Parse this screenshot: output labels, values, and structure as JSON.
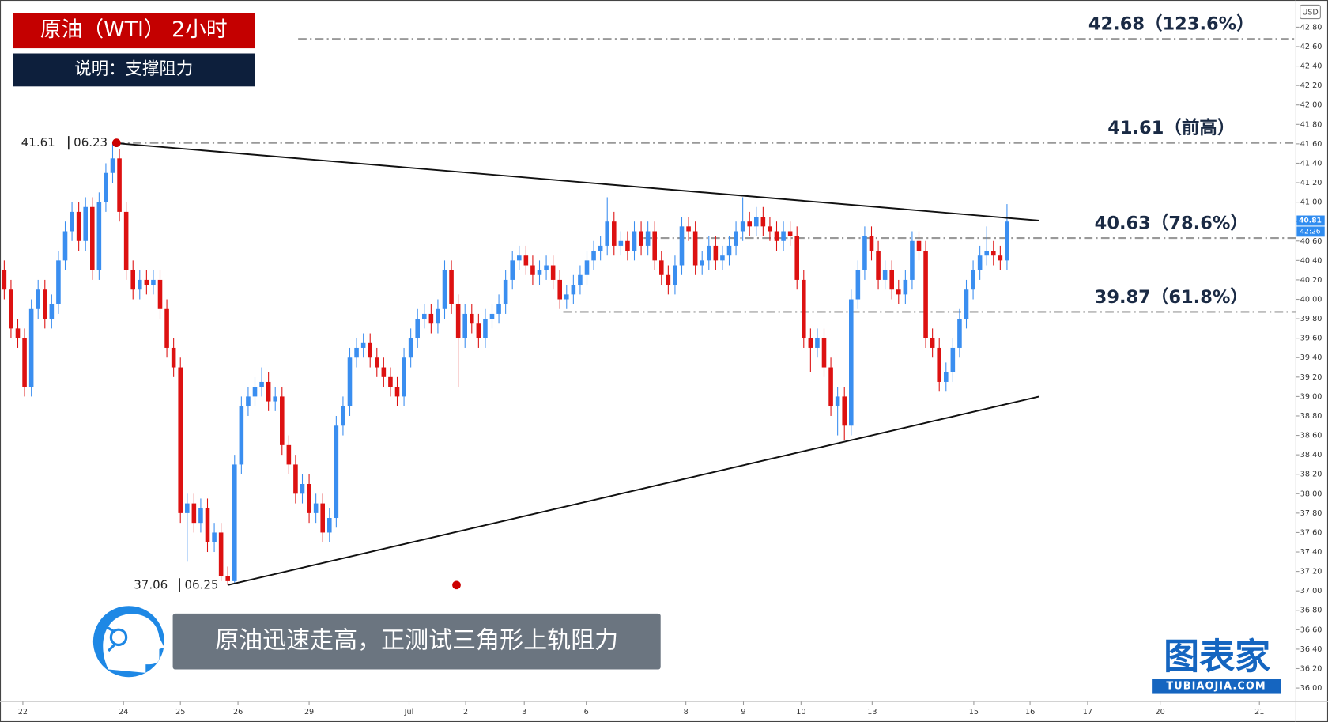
{
  "chart_data": {
    "type": "candlestick",
    "title": "原油（WTI） 2小时",
    "subtitle": "说明：支撑阻力",
    "caption": "原油迅速走高，正测试三角形上轨阻力",
    "logo": "图表家",
    "logo_url": "TUBIAOJIA.COM",
    "currency": "USD",
    "last_price": 40.81,
    "countdown": "42:26",
    "up_color": "#3a8ef0",
    "down_color": "#dd1111",
    "open": [
      40.3,
      40.1,
      39.7,
      39.6,
      39.1,
      39.9,
      40.1,
      39.8,
      39.95,
      40.4,
      40.7,
      40.9,
      40.6,
      40.95,
      40.3,
      41.0,
      41.3,
      41.45,
      40.9,
      40.3,
      40.1,
      40.2,
      40.15,
      40.2,
      39.9,
      39.5,
      39.3,
      37.8,
      37.9,
      37.7,
      37.85,
      37.5,
      37.6,
      37.15,
      37.1,
      38.3,
      38.9,
      39.0,
      39.1,
      39.15,
      38.95,
      39.0,
      38.5,
      38.3,
      38.0,
      38.1,
      37.8,
      37.9,
      37.6,
      37.75,
      38.7,
      38.9,
      39.4,
      39.5,
      39.55,
      39.4,
      39.3,
      39.2,
      39.1,
      39.0,
      39.4,
      39.6,
      39.8,
      39.85,
      39.75,
      39.9,
      40.3,
      39.95,
      39.6,
      39.85,
      39.75,
      39.6,
      39.8,
      39.85,
      39.95,
      40.2,
      40.4,
      40.45,
      40.35,
      40.25,
      40.3,
      40.35,
      40.2,
      40.0,
      40.05,
      40.15,
      40.25,
      40.4,
      40.5,
      40.55,
      40.8,
      40.55,
      40.6,
      40.5,
      40.7,
      40.55,
      40.7,
      40.4,
      40.25,
      40.15,
      40.35,
      40.75,
      40.7,
      40.35,
      40.4,
      40.55,
      40.4,
      40.45,
      40.55,
      40.7,
      40.8,
      40.75,
      40.85,
      40.75,
      40.7,
      40.6,
      40.7,
      40.65,
      40.2,
      39.6,
      39.5,
      39.6,
      39.3,
      38.9,
      39.0,
      38.7,
      40.0,
      40.3,
      40.65,
      40.5,
      40.2,
      40.3,
      40.1,
      40.05,
      40.2,
      40.6,
      40.5,
      39.6,
      39.5,
      39.15,
      39.25,
      39.5,
      39.8,
      40.1,
      40.3,
      40.45,
      40.5,
      40.45,
      40.4
    ],
    "high": [
      40.4,
      40.2,
      39.8,
      39.7,
      40.0,
      40.2,
      40.2,
      40.05,
      40.5,
      40.8,
      41.0,
      41.0,
      41.05,
      41.05,
      41.1,
      41.4,
      41.61,
      41.55,
      41.0,
      40.4,
      40.3,
      40.3,
      40.3,
      40.3,
      40.0,
      39.6,
      39.4,
      38.0,
      38.0,
      37.95,
      37.95,
      37.7,
      37.7,
      37.25,
      38.4,
      39.0,
      39.1,
      39.2,
      39.3,
      39.25,
      39.1,
      39.1,
      38.6,
      38.4,
      38.2,
      38.2,
      38.0,
      38.0,
      37.85,
      38.8,
      39.0,
      39.5,
      39.6,
      39.65,
      39.65,
      39.5,
      39.4,
      39.3,
      39.2,
      39.5,
      39.7,
      39.9,
      39.95,
      39.95,
      40.0,
      40.4,
      40.4,
      40.05,
      39.95,
      39.95,
      39.85,
      39.9,
      39.95,
      40.05,
      40.3,
      40.5,
      40.55,
      40.55,
      40.45,
      40.4,
      40.45,
      40.45,
      40.3,
      40.15,
      40.25,
      40.35,
      40.5,
      40.6,
      40.65,
      41.05,
      40.9,
      40.7,
      40.7,
      40.8,
      40.8,
      40.8,
      40.8,
      40.5,
      40.35,
      40.45,
      40.85,
      40.85,
      40.8,
      40.5,
      40.65,
      40.65,
      40.55,
      40.65,
      40.8,
      41.05,
      40.9,
      40.95,
      40.95,
      40.85,
      40.8,
      40.8,
      40.8,
      40.75,
      40.3,
      39.7,
      39.7,
      39.7,
      39.4,
      39.1,
      39.1,
      40.1,
      40.4,
      40.75,
      40.75,
      40.6,
      40.4,
      40.4,
      40.2,
      40.3,
      40.7,
      40.7,
      40.6,
      39.7,
      39.6,
      39.35,
      39.6,
      39.9,
      40.2,
      40.4,
      40.55,
      40.75,
      40.6,
      40.55,
      40.98
    ],
    "low": [
      40.0,
      39.6,
      39.5,
      39.0,
      39.0,
      39.8,
      39.7,
      39.7,
      39.85,
      40.3,
      40.6,
      40.5,
      40.5,
      40.2,
      40.2,
      40.9,
      41.2,
      40.8,
      40.2,
      40.0,
      40.0,
      40.05,
      40.05,
      39.8,
      39.4,
      39.2,
      37.7,
      37.3,
      37.6,
      37.6,
      37.4,
      37.4,
      37.1,
      37.06,
      37.08,
      38.2,
      38.8,
      38.9,
      39.0,
      38.85,
      38.85,
      38.4,
      38.2,
      37.9,
      37.9,
      37.7,
      37.7,
      37.5,
      37.5,
      37.65,
      38.6,
      38.8,
      39.3,
      39.4,
      39.3,
      39.2,
      39.1,
      39.0,
      38.9,
      38.9,
      39.3,
      39.5,
      39.7,
      39.65,
      39.65,
      39.8,
      39.85,
      39.1,
      39.5,
      39.65,
      39.5,
      39.5,
      39.7,
      39.75,
      39.85,
      40.1,
      40.3,
      40.25,
      40.15,
      40.15,
      40.2,
      40.1,
      39.9,
      39.9,
      39.95,
      40.05,
      40.15,
      40.3,
      40.4,
      40.45,
      40.45,
      40.45,
      40.4,
      40.4,
      40.45,
      40.45,
      40.3,
      40.15,
      40.05,
      40.05,
      40.25,
      40.6,
      40.25,
      40.25,
      40.3,
      40.3,
      40.3,
      40.35,
      40.45,
      40.6,
      40.65,
      40.65,
      40.65,
      40.6,
      40.5,
      40.5,
      40.55,
      40.1,
      39.5,
      39.25,
      39.4,
      39.2,
      38.8,
      38.6,
      38.55,
      38.6,
      39.9,
      40.2,
      40.4,
      40.1,
      40.1,
      40.0,
      39.95,
      39.95,
      40.1,
      40.4,
      39.5,
      39.4,
      39.05,
      39.05,
      39.15,
      39.4,
      39.7,
      40.0,
      40.2,
      40.35,
      40.35,
      40.3,
      40.3
    ],
    "close": [
      40.1,
      39.7,
      39.6,
      39.1,
      39.9,
      40.1,
      39.8,
      39.95,
      40.4,
      40.7,
      40.9,
      40.6,
      40.95,
      40.3,
      41.0,
      41.3,
      41.45,
      40.9,
      40.3,
      40.1,
      40.2,
      40.15,
      40.2,
      39.9,
      39.5,
      39.3,
      37.8,
      37.9,
      37.7,
      37.85,
      37.5,
      37.6,
      37.15,
      37.1,
      38.3,
      38.9,
      39.0,
      39.1,
      39.15,
      38.95,
      39.0,
      38.5,
      38.3,
      38.0,
      38.1,
      37.8,
      37.9,
      37.6,
      37.75,
      38.7,
      38.9,
      39.4,
      39.5,
      39.55,
      39.4,
      39.3,
      39.2,
      39.1,
      39.0,
      39.4,
      39.6,
      39.8,
      39.85,
      39.75,
      39.9,
      40.3,
      39.95,
      39.6,
      39.85,
      39.75,
      39.6,
      39.8,
      39.85,
      39.95,
      40.2,
      40.4,
      40.45,
      40.35,
      40.25,
      40.3,
      40.35,
      40.2,
      40.0,
      40.05,
      40.15,
      40.25,
      40.4,
      40.5,
      40.55,
      40.8,
      40.55,
      40.6,
      40.5,
      40.7,
      40.55,
      40.7,
      40.4,
      40.25,
      40.15,
      40.35,
      40.75,
      40.7,
      40.35,
      40.4,
      40.55,
      40.4,
      40.45,
      40.55,
      40.7,
      40.8,
      40.75,
      40.85,
      40.75,
      40.7,
      40.6,
      40.7,
      40.65,
      40.2,
      39.6,
      39.5,
      39.6,
      39.3,
      38.9,
      39.0,
      38.7,
      40.0,
      40.3,
      40.65,
      40.5,
      40.2,
      40.3,
      40.1,
      40.05,
      40.2,
      40.6,
      40.5,
      39.6,
      39.5,
      39.15,
      39.25,
      39.5,
      39.8,
      40.1,
      40.3,
      40.45,
      40.5,
      40.45,
      40.4,
      40.8
    ],
    "xlim": [
      -0.625,
      190.625
    ],
    "ylim": [
      35.86,
      43.08
    ],
    "xticks": [
      {
        "value": 2.75,
        "label": "22"
      },
      {
        "value": 17.6,
        "label": "24"
      },
      {
        "value": 26,
        "label": "25"
      },
      {
        "value": 34.5,
        "label": "26"
      },
      {
        "value": 45,
        "label": "29"
      },
      {
        "value": 59.75,
        "label": "Jul"
      },
      {
        "value": 68.1,
        "label": "2"
      },
      {
        "value": 76.75,
        "label": "3"
      },
      {
        "value": 85.9,
        "label": "6"
      },
      {
        "value": 100.6,
        "label": "8"
      },
      {
        "value": 109.1,
        "label": "9"
      },
      {
        "value": 117.6,
        "label": "10"
      },
      {
        "value": 128.1,
        "label": "13"
      },
      {
        "value": 143.1,
        "label": "15"
      },
      {
        "value": 151.4,
        "label": "16"
      },
      {
        "value": 159.9,
        "label": "17"
      },
      {
        "value": 170.6,
        "label": "20"
      },
      {
        "value": 185.25,
        "label": "21"
      }
    ],
    "yticks": [
      {
        "value": 36,
        "label": "36.00"
      },
      {
        "value": 36.2,
        "label": "36.20"
      },
      {
        "value": 36.4,
        "label": "36.40"
      },
      {
        "value": 36.6,
        "label": "36.60"
      },
      {
        "value": 36.8,
        "label": "36.80"
      },
      {
        "value": 37,
        "label": "37.00"
      },
      {
        "value": 37.2,
        "label": "37.20"
      },
      {
        "value": 37.4,
        "label": "37.40"
      },
      {
        "value": 37.6,
        "label": "37.60"
      },
      {
        "value": 37.8,
        "label": "37.80"
      },
      {
        "value": 38,
        "label": "38.00"
      },
      {
        "value": 38.2,
        "label": "38.20"
      },
      {
        "value": 38.4,
        "label": "38.40"
      },
      {
        "value": 38.6,
        "label": "38.60"
      },
      {
        "value": 38.8,
        "label": "38.80"
      },
      {
        "value": 39,
        "label": "39.00"
      },
      {
        "value": 39.2,
        "label": "39.20"
      },
      {
        "value": 39.4,
        "label": "39.40"
      },
      {
        "value": 39.6,
        "label": "39.60"
      },
      {
        "value": 39.8,
        "label": "39.80"
      },
      {
        "value": 40,
        "label": "40.00"
      },
      {
        "value": 40.2,
        "label": "40.20"
      },
      {
        "value": 40.4,
        "label": "40.40"
      },
      {
        "value": 40.6,
        "label": "40.60"
      },
      {
        "value": 40.8,
        "label": "40.80"
      },
      {
        "value": 41,
        "label": "41.00"
      },
      {
        "value": 41.2,
        "label": "41.20"
      },
      {
        "value": 41.4,
        "label": "41.40"
      },
      {
        "value": 41.6,
        "label": "41.60"
      },
      {
        "value": 41.8,
        "label": "41.80"
      },
      {
        "value": 42,
        "label": "42.00"
      },
      {
        "value": 42.2,
        "label": "42.20"
      },
      {
        "value": 42.4,
        "label": "42.40"
      },
      {
        "value": 42.6,
        "label": "42.60"
      },
      {
        "value": 42.8,
        "label": "42.80"
      }
    ],
    "levels": [
      {
        "value": 42.68,
        "label": "42.68（123.6%）"
      },
      {
        "value": 41.61,
        "label": "41.61（前高）"
      },
      {
        "value": 40.63,
        "label": "40.63（78.6%）"
      },
      {
        "value": 39.87,
        "label": "39.87（61.8%）"
      }
    ],
    "extremes": [
      {
        "x": 16,
        "value": 41.61,
        "date": "06.23"
      },
      {
        "x": 33,
        "value": 37.06,
        "date": "06.25"
      }
    ],
    "trendlines": [
      {
        "points": [
          [
            16,
            41.61
          ],
          [
            152.75,
            40.81
          ]
        ]
      },
      {
        "points": [
          [
            33,
            37.06
          ],
          [
            152.75,
            39.0
          ]
        ]
      }
    ]
  }
}
